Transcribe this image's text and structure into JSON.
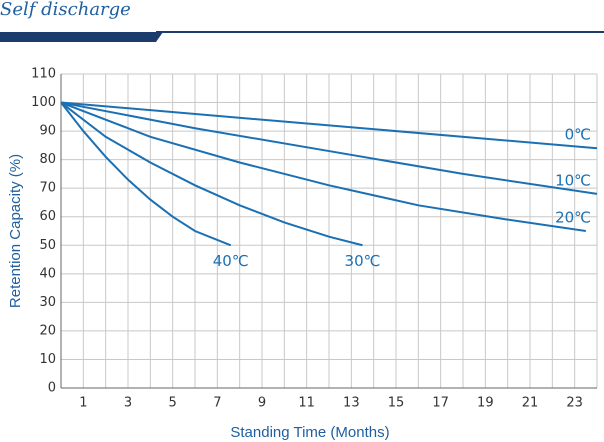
{
  "chart_data": {
    "type": "line",
    "title": "Self discharge",
    "xlabel": "Standing Time (Months)",
    "ylabel": "Retention Capacity (%)",
    "xlim": [
      0,
      24
    ],
    "ylim": [
      0,
      110
    ],
    "xticks": [
      1,
      3,
      5,
      7,
      9,
      11,
      13,
      15,
      17,
      19,
      21,
      23
    ],
    "x_minor_ticks": [
      2,
      4,
      6,
      8,
      10,
      12,
      14,
      16,
      18,
      20,
      22,
      24
    ],
    "yticks": [
      0,
      10,
      20,
      30,
      40,
      50,
      60,
      70,
      80,
      90,
      100,
      110
    ],
    "grid": true,
    "series": [
      {
        "name": "0℃",
        "color": "#1b70b3",
        "x": [
          0,
          12,
          24
        ],
        "values": [
          100,
          92,
          84
        ]
      },
      {
        "name": "10℃",
        "color": "#1b70b3",
        "x": [
          0,
          6,
          12,
          18,
          24
        ],
        "values": [
          100,
          91,
          83,
          75,
          68
        ]
      },
      {
        "name": "20℃",
        "color": "#1b70b3",
        "x": [
          0,
          4,
          8,
          12,
          16,
          20,
          23.5
        ],
        "values": [
          100,
          88,
          79,
          71,
          64,
          59,
          55
        ]
      },
      {
        "name": "30℃",
        "color": "#1b70b3",
        "x": [
          0,
          2,
          4,
          6,
          8,
          10,
          12,
          13.5
        ],
        "values": [
          100,
          88,
          79,
          71,
          64,
          58,
          53,
          50
        ]
      },
      {
        "name": "40℃",
        "color": "#1b70b3",
        "x": [
          0,
          1,
          2,
          3,
          4,
          5,
          6,
          7.6
        ],
        "values": [
          100,
          90,
          81,
          73,
          66,
          60,
          55,
          50
        ]
      }
    ]
  }
}
